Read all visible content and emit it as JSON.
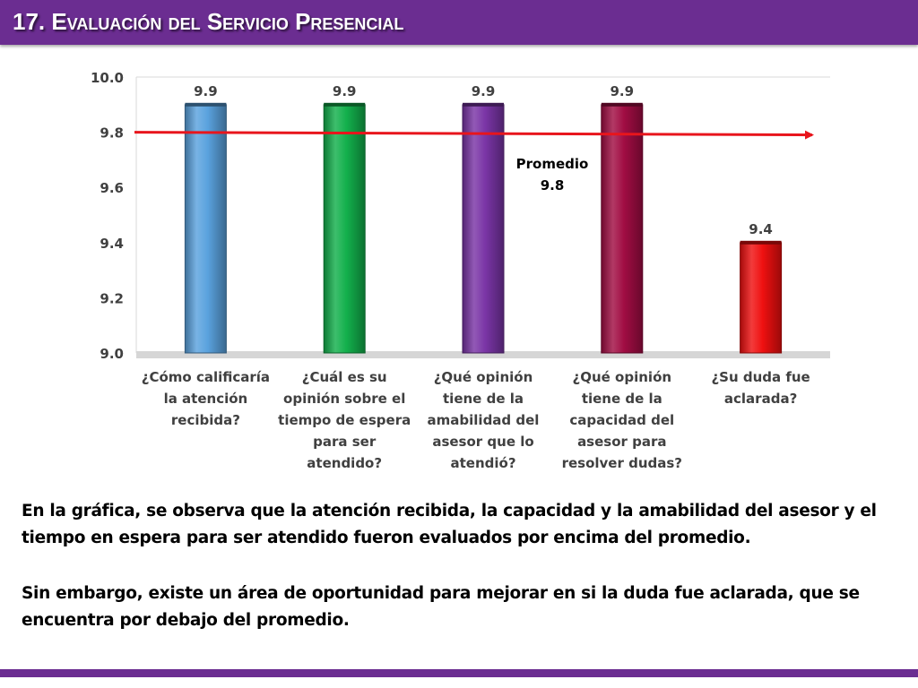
{
  "header": {
    "title": "17. Evaluación del Servicio Presencial"
  },
  "colors": {
    "header_bg": "#6b2d91",
    "average_line": "#e8151c",
    "bar_colors": [
      "#5aa2de",
      "#13b04c",
      "#7a35a6",
      "#a10d43",
      "#ef1010"
    ]
  },
  "chart_data": {
    "type": "bar",
    "categories": [
      [
        "¿Cómo calificaría",
        "la atención",
        "recibida?"
      ],
      [
        "¿Cuál es su",
        "opinión sobre el",
        "tiempo de espera",
        "para ser",
        "atendido?"
      ],
      [
        "¿Qué opinión",
        "tiene de la",
        "amabilidad del",
        "asesor que lo",
        "atendió?"
      ],
      [
        "¿Qué opinión",
        "tiene de la",
        "capacidad del",
        "asesor para",
        "resolver dudas?"
      ],
      [
        "¿Su duda fue",
        "aclarada?"
      ]
    ],
    "values": [
      9.9,
      9.9,
      9.9,
      9.9,
      9.4
    ],
    "value_labels": [
      "9.9",
      "9.9",
      "9.9",
      "9.9",
      "9.4"
    ],
    "ylim": [
      9.0,
      10.0
    ],
    "yticks": [
      "9.0",
      "9.2",
      "9.4",
      "9.6",
      "9.8",
      "10.0"
    ],
    "average": {
      "value": 9.8,
      "label": "Promedio",
      "value_label": "9.8"
    },
    "grid": false,
    "title": "",
    "xlabel": "",
    "ylabel": ""
  },
  "text": {
    "paragraph1": "En la gráfica, se observa que la atención recibida, la capacidad y la amabilidad del asesor y el tiempo en espera para ser atendido fueron evaluados por encima del promedio.",
    "paragraph2": "Sin embargo, existe un área de oportunidad para mejorar en si la duda fue aclarada, que se encuentra por debajo del promedio."
  }
}
